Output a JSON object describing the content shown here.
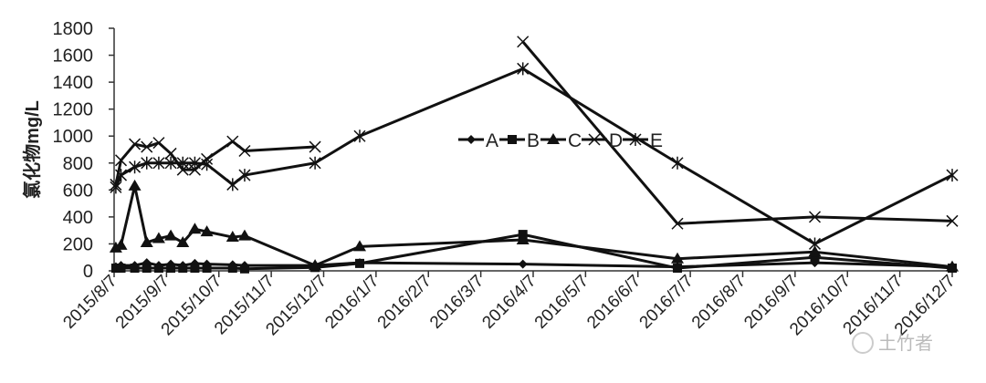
{
  "chart_data": {
    "type": "line",
    "title": "",
    "xlabel": "",
    "ylabel": "氯化物mg/L",
    "ylim": [
      0,
      1800
    ],
    "yticks": [
      0,
      200,
      400,
      600,
      800,
      1000,
      1200,
      1400,
      1600,
      1800
    ],
    "xlim": [
      "2015-08-07",
      "2016-12-07"
    ],
    "xticks": [
      "2015/8/7",
      "2015/9/7",
      "2015/10/7",
      "2015/11/7",
      "2015/12/7",
      "2016/1/7",
      "2016/2/7",
      "2016/3/7",
      "2016/4/7",
      "2016/5/7",
      "2016/6/7",
      "2016/7/7",
      "2016/8/7",
      "2016/9/7",
      "2016/10/7",
      "2016/11/7",
      "2016/12/7"
    ],
    "grid": false,
    "legend_position": "center",
    "x": [
      "2015-08-08",
      "2015-08-11",
      "2015-08-19",
      "2015-08-26",
      "2015-09-02",
      "2015-09-09",
      "2015-09-16",
      "2015-09-23",
      "2015-09-30",
      "2015-10-15",
      "2015-10-22",
      "2015-12-02",
      "2015-12-28",
      "2016-04-01",
      "2016-06-30",
      "2016-09-18",
      "2016-12-07"
    ],
    "series": [
      {
        "name": "A",
        "marker": "diamond",
        "values": [
          30,
          40,
          40,
          60,
          40,
          50,
          40,
          55,
          50,
          45,
          40,
          40,
          60,
          50,
          30,
          60,
          30
        ]
      },
      {
        "name": "B",
        "marker": "square",
        "values": [
          20,
          20,
          20,
          20,
          20,
          20,
          20,
          20,
          20,
          20,
          15,
          25,
          55,
          270,
          20,
          100,
          20
        ]
      },
      {
        "name": "C",
        "marker": "triangle",
        "values": [
          170,
          190,
          630,
          210,
          240,
          260,
          210,
          310,
          290,
          250,
          260,
          40,
          180,
          230,
          90,
          140,
          30
        ]
      },
      {
        "name": "D",
        "marker": "x",
        "values": [
          640,
          820,
          940,
          920,
          950,
          870,
          750,
          750,
          830,
          960,
          890,
          920,
          null,
          1700,
          350,
          400,
          370
        ]
      },
      {
        "name": "E",
        "marker": "asterisk",
        "values": [
          620,
          710,
          770,
          800,
          800,
          800,
          800,
          800,
          790,
          640,
          710,
          800,
          1000,
          1500,
          800,
          200,
          710
        ]
      }
    ],
    "line_color": "#111111"
  },
  "watermark": {
    "text": "土竹者"
  }
}
